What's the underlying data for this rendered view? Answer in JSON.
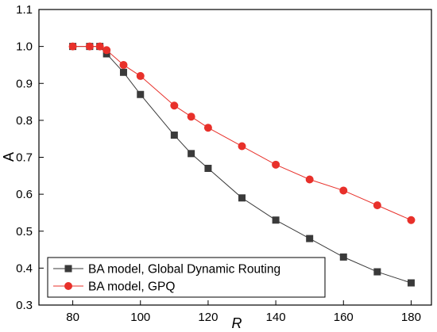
{
  "chart_data": {
    "type": "line",
    "title": "",
    "xlabel": "R",
    "ylabel": "A",
    "xlim": [
      70,
      186
    ],
    "ylim": [
      0.3,
      1.1
    ],
    "xticks": [
      80,
      100,
      120,
      140,
      160,
      180
    ],
    "yticks": [
      0.3,
      0.4,
      0.5,
      0.6,
      0.7,
      0.8,
      0.9,
      1.0,
      1.1
    ],
    "xtick_labels": [
      "80",
      "100",
      "120",
      "140",
      "160",
      "180"
    ],
    "ytick_labels": [
      "0.3",
      "0.4",
      "0.5",
      "0.6",
      "0.7",
      "0.8",
      "0.9",
      "1.0",
      "1.1"
    ],
    "grid": false,
    "legend_position": "bottom-left",
    "series": [
      {
        "name": "BA model, Global Dynamic Routing",
        "color": "#3a3a3a",
        "marker": "square",
        "x": [
          80,
          85,
          88,
          90,
          95,
          100,
          110,
          115,
          120,
          130,
          140,
          150,
          160,
          170,
          180
        ],
        "y": [
          1.0,
          1.0,
          1.0,
          0.98,
          0.93,
          0.87,
          0.76,
          0.71,
          0.67,
          0.59,
          0.53,
          0.48,
          0.43,
          0.39,
          0.36
        ]
      },
      {
        "name": "BA model, GPQ",
        "color": "#e8302a",
        "marker": "circle",
        "x": [
          80,
          85,
          88,
          90,
          95,
          100,
          110,
          115,
          120,
          130,
          140,
          150,
          160,
          170,
          180
        ],
        "y": [
          1.0,
          1.0,
          1.0,
          0.99,
          0.95,
          0.92,
          0.84,
          0.81,
          0.78,
          0.73,
          0.68,
          0.64,
          0.61,
          0.57,
          0.53
        ]
      }
    ]
  }
}
